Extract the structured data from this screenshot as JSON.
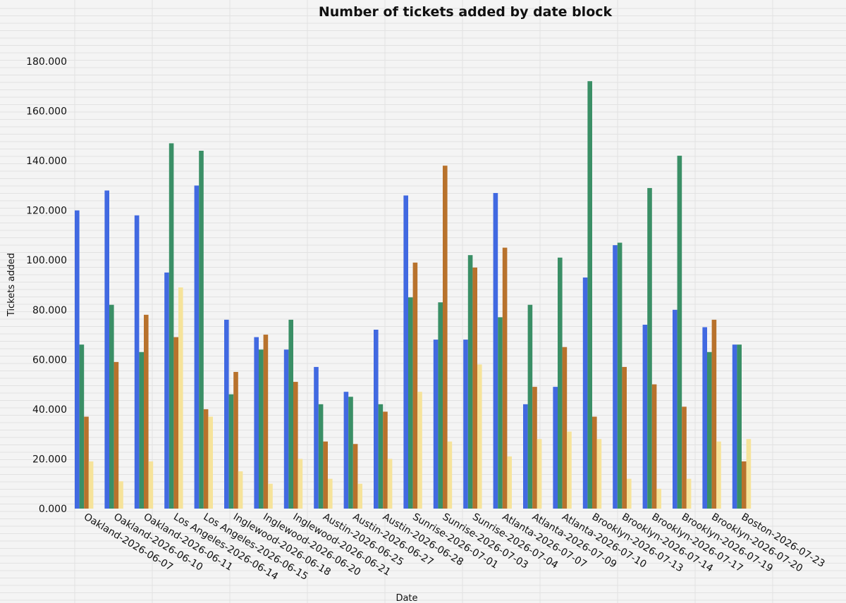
{
  "chart_data": {
    "type": "bar",
    "title": "Number of tickets added by date block",
    "xlabel": "Date",
    "ylabel": "Tickets added",
    "ylim": [
      0,
      180
    ],
    "ytick_labels": [
      "0.000",
      "20.000",
      "40.000",
      "60.000",
      "80.000",
      "100.000",
      "120.000",
      "140.000",
      "160.000",
      "180.000"
    ],
    "grid": "on",
    "legend": "none",
    "colors": [
      "#4169e1",
      "#3a8f66",
      "#b8722c",
      "#f6e39a"
    ],
    "categories": [
      "Oakland-2026-06-07",
      "Oakland-2026-06-10",
      "Oakland-2026-06-11",
      "Los Angeles-2026-06-14",
      "Los Angeles-2026-06-15",
      "Inglewood-2026-06-18",
      "Inglewood-2026-06-20",
      "Inglewood-2026-06-21",
      "Austin-2026-06-25",
      "Austin-2026-06-27",
      "Austin-2026-06-28",
      "Sunrise-2026-07-01",
      "Sunrise-2026-07-03",
      "Sunrise-2026-07-04",
      "Atlanta-2026-07-07",
      "Atlanta-2026-07-09",
      "Atlanta-2026-07-10",
      "Brooklyn-2026-07-13",
      "Brooklyn-2026-07-14",
      "Brooklyn-2026-07-17",
      "Brooklyn-2026-07-19",
      "Brooklyn-2026-07-20",
      "Boston-2026-07-23"
    ],
    "series": [
      {
        "values": [
          120,
          128,
          118,
          95,
          130,
          76,
          69,
          64,
          57,
          47,
          72,
          126,
          68,
          68,
          127,
          42,
          49,
          93,
          106,
          74,
          80,
          73,
          66
        ]
      },
      {
        "values": [
          66,
          82,
          63,
          147,
          144,
          46,
          64,
          76,
          42,
          45,
          42,
          85,
          83,
          102,
          77,
          82,
          101,
          172,
          107,
          129,
          142,
          63,
          66
        ]
      },
      {
        "values": [
          37,
          59,
          78,
          69,
          40,
          55,
          70,
          51,
          27,
          26,
          39,
          99,
          138,
          97,
          105,
          49,
          65,
          37,
          57,
          50,
          41,
          76,
          19
        ]
      },
      {
        "values": [
          19,
          11,
          19,
          89,
          37,
          15,
          10,
          20,
          12,
          10,
          20,
          47,
          27,
          58,
          21,
          28,
          31,
          28,
          12,
          8,
          12,
          27,
          28
        ]
      }
    ]
  }
}
